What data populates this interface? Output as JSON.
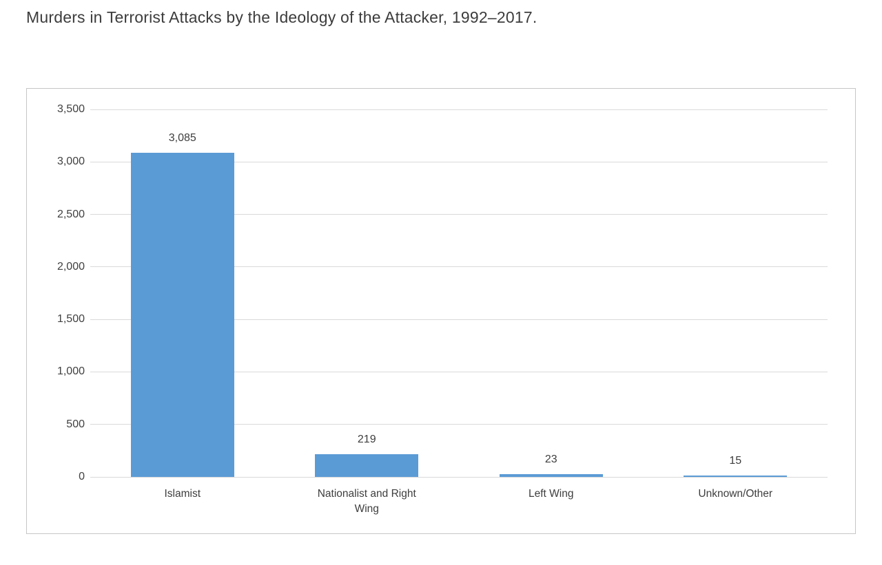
{
  "page": {
    "title": "Murders in Terrorist Attacks by the Ideology of the Attacker, 1992–2017."
  },
  "chart_data": {
    "type": "bar",
    "title": "Murders in Terrorist Attacks by the Ideology of the Attacker, 1992–2017.",
    "categories": [
      "Islamist",
      "Nationalist and Right Wing",
      "Left Wing",
      "Unknown/Other"
    ],
    "values": [
      3085,
      219,
      23,
      15
    ],
    "data_labels": [
      "3,085",
      "219",
      "23",
      "15"
    ],
    "xlabel": "",
    "ylabel": "",
    "ylim": [
      0,
      3500
    ],
    "ytick_interval": 500,
    "ytick_labels": [
      "0",
      "500",
      "1,000",
      "1,500",
      "2,000",
      "2,500",
      "3,000",
      "3,500"
    ],
    "grid": true,
    "legend": "none",
    "colors": {
      "bar": "#5b9bd5",
      "gridline": "#d9d9d9",
      "frame_border": "#c6c6c6",
      "text": "#3d3d3d"
    }
  }
}
